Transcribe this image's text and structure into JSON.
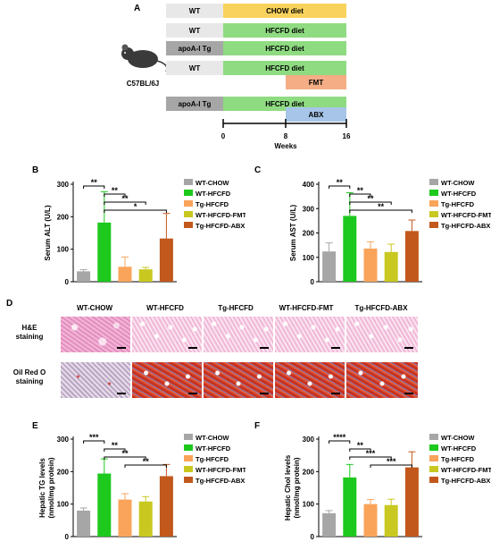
{
  "panel_letters": [
    "A",
    "B",
    "C",
    "D",
    "E",
    "F"
  ],
  "panel_a": {
    "mouse_label": "C57BL/6J",
    "rows": [
      {
        "genotype": "WT",
        "diet": "CHOW diet",
        "extra": ""
      },
      {
        "genotype": "WT",
        "diet": "HFCFD diet",
        "extra": ""
      },
      {
        "genotype": "apoA-I Tg",
        "diet": "HFCFD diet",
        "extra": ""
      },
      {
        "genotype": "WT",
        "diet": "HFCFD diet",
        "extra": "FMT"
      },
      {
        "genotype": "apoA-I Tg",
        "diet": "HFCFD diet",
        "extra": "ABX"
      }
    ],
    "ticks": [
      "0",
      "8",
      "16"
    ],
    "axis_label": "Weeks",
    "colors": {
      "chow": "#f9d25d",
      "hfcfd": "#8fdb82",
      "wt": "#e8e8e8",
      "tg": "#a6a6a6",
      "fmt": "#f4ad84",
      "abx": "#a7c5e8"
    }
  },
  "panel_d": {
    "columns": [
      "WT-CHOW",
      "WT-HFCFD",
      "Tg-HFCFD",
      "WT-HFCFD-FMT",
      "Tg-HFCFD-ABX"
    ],
    "rows": [
      {
        "line1": "H&E",
        "line2": "staining"
      },
      {
        "line1": "Oil Red O",
        "line2": "staining"
      }
    ]
  },
  "chart_data": [
    {
      "panel": "B",
      "type": "bar",
      "categories": [
        "WT-CHOW",
        "WT-HFCFD",
        "Tg-HFCFD",
        "WT-HFCFD-FMT",
        "Tg-HFCFD-ABX"
      ],
      "values": [
        32,
        182,
        46,
        38,
        133
      ],
      "errors": [
        5,
        95,
        30,
        6,
        77
      ],
      "colors": [
        "#a6a6a6",
        "#1dc91d",
        "#f9a45a",
        "#c8c820",
        "#c2581c"
      ],
      "ylabel": "Serum ALT (U/L)",
      "ylim": [
        0,
        300
      ],
      "yticks": [
        "0",
        "100",
        "200",
        "300"
      ],
      "legend": [
        "WT-CHOW",
        "WT-HFCFD",
        "Tg-HFCFD",
        "WT-HFCFD-FMT",
        "Tg-HFCFD-ABX"
      ],
      "legend_position": "right",
      "significance": [
        {
          "from": 0,
          "to": 1,
          "label": "**"
        },
        {
          "from": 1,
          "to": 2,
          "label": "**"
        },
        {
          "from": 1,
          "to": 3,
          "label": "**"
        },
        {
          "from": 1,
          "to": 4,
          "label": "*"
        }
      ]
    },
    {
      "panel": "C",
      "type": "bar",
      "categories": [
        "WT-CHOW",
        "WT-HFCFD",
        "Tg-HFCFD",
        "WT-HFCFD-FMT",
        "Tg-HFCFD-ABX"
      ],
      "values": [
        124,
        270,
        136,
        122,
        208
      ],
      "errors": [
        35,
        95,
        28,
        32,
        45
      ],
      "colors": [
        "#a6a6a6",
        "#1dc91d",
        "#f9a45a",
        "#c8c820",
        "#c2581c"
      ],
      "ylabel": "Serum AST (U/L)",
      "ylim": [
        0,
        400
      ],
      "yticks": [
        "0",
        "100",
        "200",
        "300",
        "400"
      ],
      "legend": [
        "WT-CHOW",
        "WT-HFCFD",
        "Tg-HFCFD",
        "WT-HFCFD-FMT",
        "Tg-HFCFD-ABX"
      ],
      "legend_position": "right",
      "significance": [
        {
          "from": 0,
          "to": 1,
          "label": "**"
        },
        {
          "from": 1,
          "to": 2,
          "label": "**"
        },
        {
          "from": 1,
          "to": 3,
          "label": "**"
        },
        {
          "from": 1,
          "to": 4,
          "label": "**"
        }
      ]
    },
    {
      "panel": "E",
      "type": "bar",
      "categories": [
        "WT-CHOW",
        "WT-HFCFD",
        "Tg-HFCFD",
        "WT-HFCFD-FMT",
        "Tg-HFCFD-ABX"
      ],
      "values": [
        80,
        194,
        114,
        108,
        186
      ],
      "errors": [
        8,
        45,
        18,
        15,
        36
      ],
      "colors": [
        "#a6a6a6",
        "#1dc91d",
        "#f9a45a",
        "#c8c820",
        "#c2581c"
      ],
      "ylabel": "Hepatic TG levels",
      "ylabel2": "(nmol/mg protein)",
      "ylim": [
        0,
        300
      ],
      "yticks": [
        "0",
        "100",
        "200",
        "300"
      ],
      "legend": [
        "WT-CHOW",
        "WT-HFCFD",
        "Tg-HFCFD",
        "WT-HFCFD-FMT",
        "Tg-HFCFD-ABX"
      ],
      "legend_position": "right",
      "significance": [
        {
          "from": 0,
          "to": 1,
          "label": "***"
        },
        {
          "from": 1,
          "to": 2,
          "label": "**"
        },
        {
          "from": 1,
          "to": 3,
          "label": "**"
        },
        {
          "from": 2,
          "to": 4,
          "label": "**"
        }
      ]
    },
    {
      "panel": "F",
      "type": "bar",
      "categories": [
        "WT-CHOW",
        "WT-HFCFD",
        "Tg-HFCFD",
        "WT-HFCFD-FMT",
        "Tg-HFCFD-ABX"
      ],
      "values": [
        72,
        182,
        100,
        97,
        213
      ],
      "errors": [
        8,
        40,
        14,
        18,
        48
      ],
      "colors": [
        "#a6a6a6",
        "#1dc91d",
        "#f9a45a",
        "#c8c820",
        "#c2581c"
      ],
      "ylabel": "Hepatic Chol levels",
      "ylabel2": "(nmol/mg protein)",
      "ylim": [
        0,
        300
      ],
      "yticks": [
        "0",
        "100",
        "200",
        "300"
      ],
      "legend": [
        "WT-CHOW",
        "WT-HFCFD",
        "Tg-HFCFD",
        "WT-HFCFD-FMT",
        "Tg-HFCFD-ABX"
      ],
      "legend_position": "right",
      "significance": [
        {
          "from": 0,
          "to": 1,
          "label": "****"
        },
        {
          "from": 1,
          "to": 2,
          "label": "**"
        },
        {
          "from": 1,
          "to": 3,
          "label": "***"
        },
        {
          "from": 2,
          "to": 4,
          "label": "***"
        }
      ]
    }
  ]
}
